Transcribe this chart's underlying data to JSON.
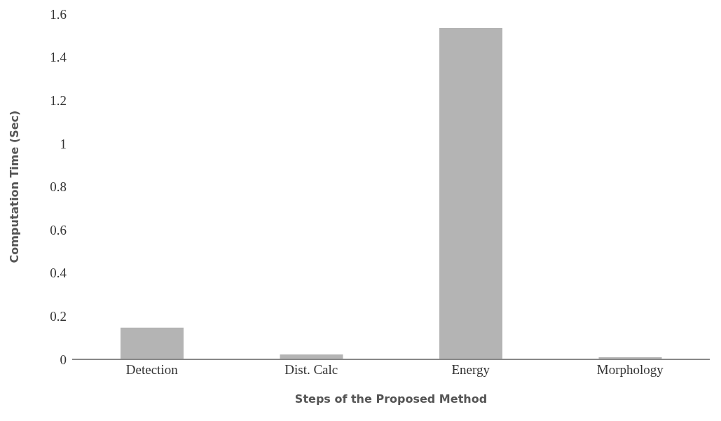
{
  "chart_data": {
    "type": "bar",
    "xlabel": "Steps of the Proposed Method",
    "ylabel": "Computation Time (Sec)",
    "categories": [
      "Detection",
      "Dist. Calc",
      "Energy",
      "Morphology"
    ],
    "values": [
      0.147,
      0.023,
      1.535,
      0.01
    ],
    "color": "#b4b4b4",
    "ylim": [
      0,
      1.6
    ],
    "yticks": [
      0,
      0.2,
      0.4,
      0.6,
      0.8,
      1,
      1.2,
      1.4,
      1.6
    ],
    "grid": false
  }
}
